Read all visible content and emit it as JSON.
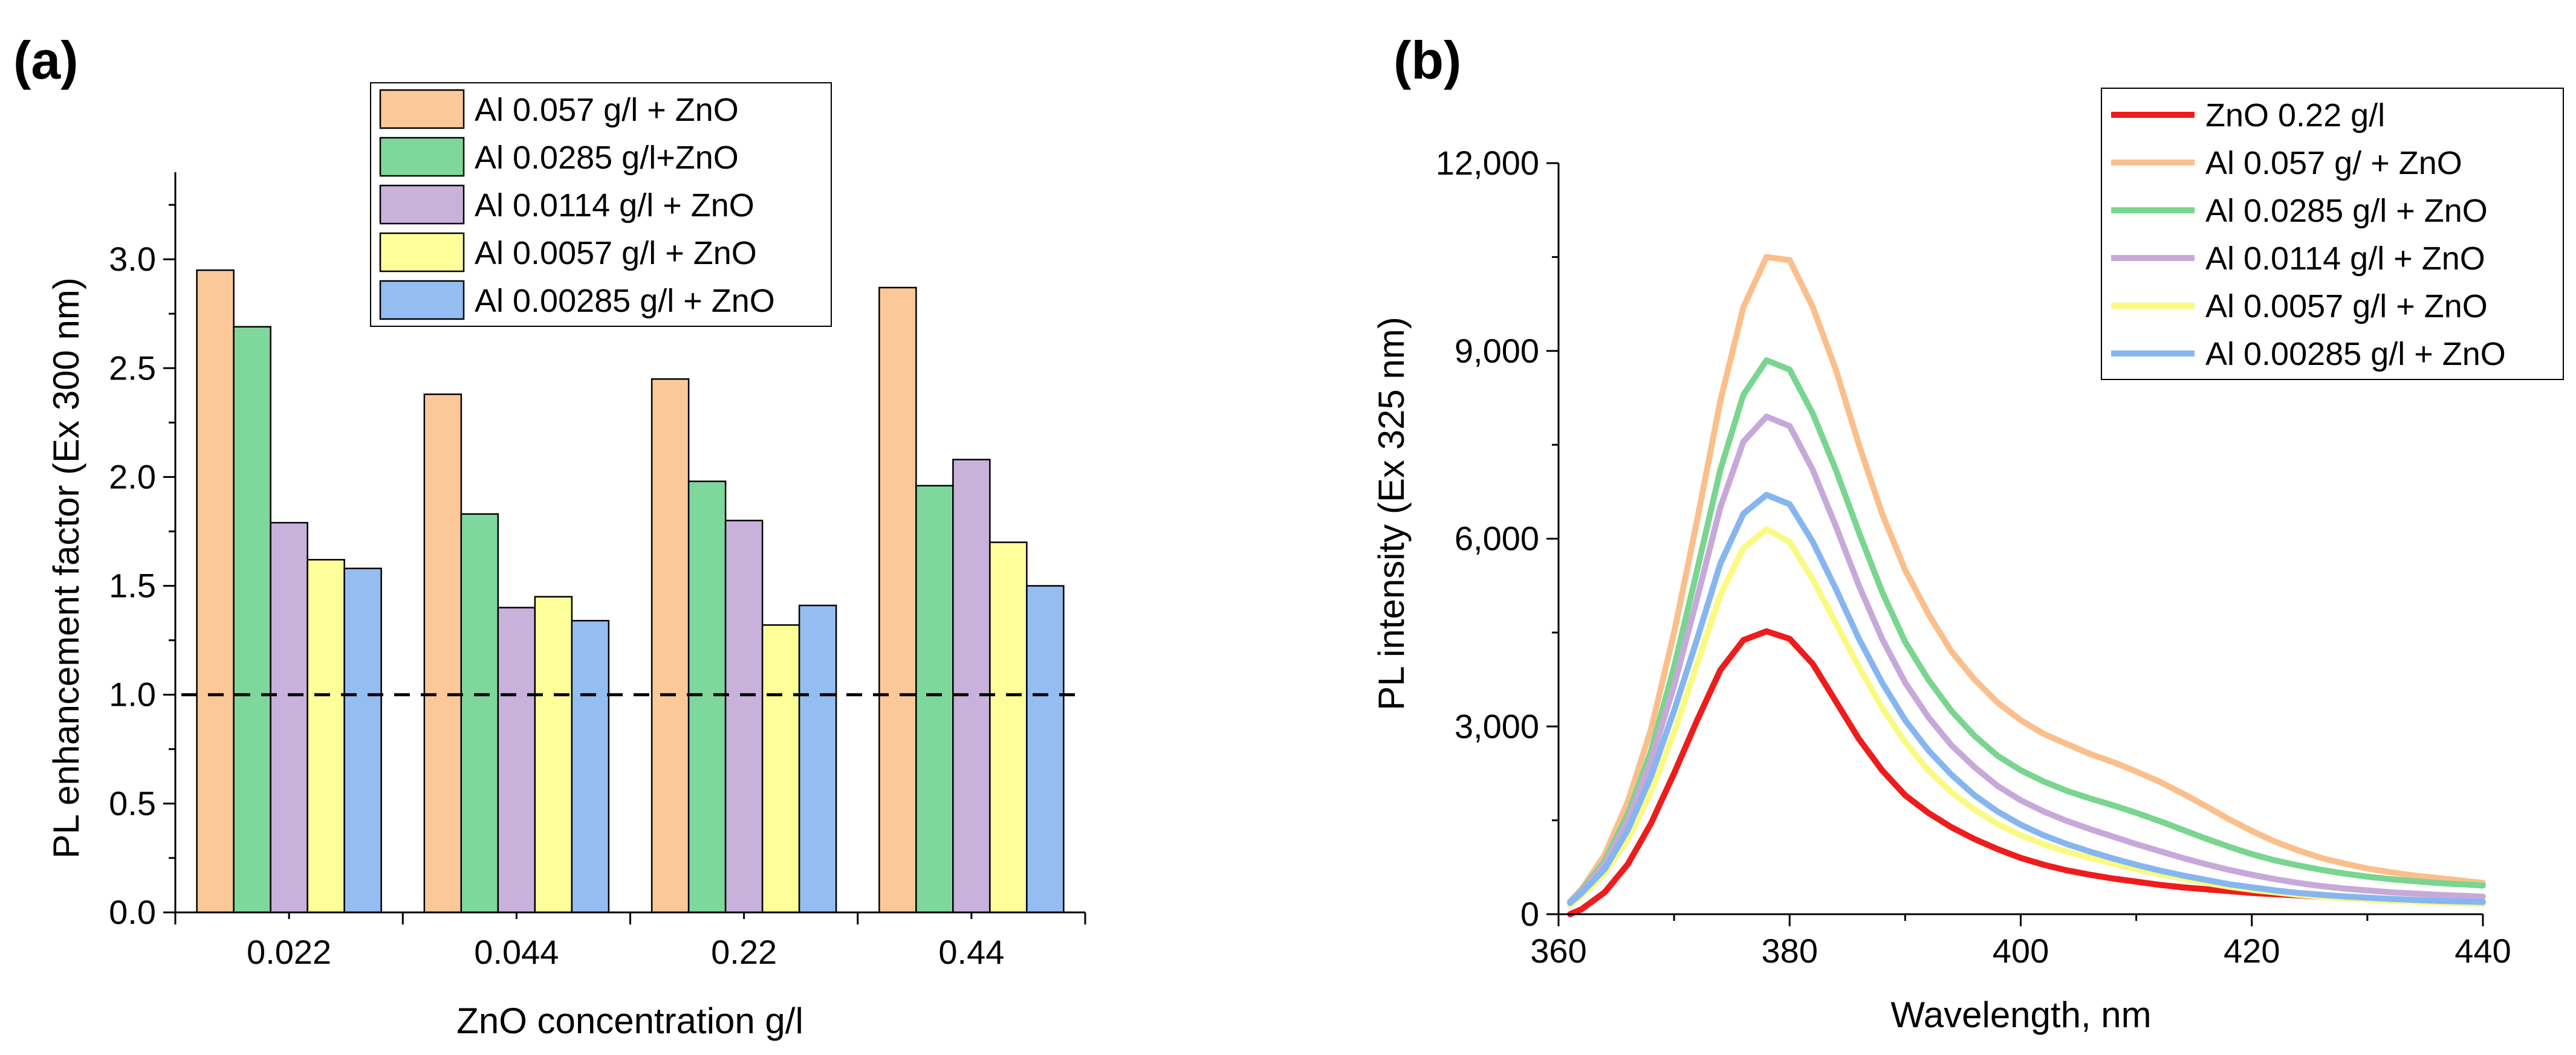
{
  "chart_data": [
    {
      "panel_label": "(a)",
      "type": "bar",
      "xlabel": "ZnO concentration g/l",
      "ylabel": "PL enhancement factor (Ex 300 nm)",
      "ylim": [
        0,
        3.4
      ],
      "yticks": [
        0.0,
        0.5,
        1.0,
        1.5,
        2.0,
        2.5,
        3.0
      ],
      "ytick_labels": [
        "0.0",
        "0.5",
        "1.0",
        "1.5",
        "2.0",
        "2.5",
        "3.0"
      ],
      "categories": [
        "0.022",
        "0.044",
        "0.22",
        "0.44"
      ],
      "reference_line": {
        "y": 1.0,
        "style": "dashed"
      },
      "legend_position": "top-center",
      "series": [
        {
          "name": "Al 0.057 g/l + ZnO",
          "color": "#FDC898",
          "values": [
            2.95,
            2.38,
            2.45,
            2.87
          ]
        },
        {
          "name": "Al 0.0285 g/l+ZnO",
          "color": "#7ED89C",
          "values": [
            2.69,
            1.83,
            1.98,
            1.96
          ]
        },
        {
          "name": "Al 0.0114 g/l + ZnO",
          "color": "#C8B2DC",
          "values": [
            1.79,
            1.4,
            1.8,
            2.08
          ]
        },
        {
          "name": "Al 0.0057 g/l + ZnO",
          "color": "#FFFF99",
          "values": [
            1.62,
            1.45,
            1.32,
            1.7
          ]
        },
        {
          "name": "Al 0.00285 g/l + ZnO",
          "color": "#94BDF2",
          "values": [
            1.58,
            1.34,
            1.41,
            1.5
          ]
        }
      ]
    },
    {
      "panel_label": "(b)",
      "type": "line",
      "xlabel": "Wavelength, nm",
      "ylabel": "PL intensity (Ex  325 nm)",
      "xlim": [
        360,
        440
      ],
      "ylim": [
        0,
        12000
      ],
      "xticks": [
        360,
        380,
        400,
        420,
        440
      ],
      "xtick_labels": [
        "360",
        "380",
        "400",
        "420",
        "440"
      ],
      "yticks": [
        0,
        3000,
        6000,
        9000,
        12000
      ],
      "ytick_labels": [
        "0",
        "3,000",
        "6,000",
        "9,000",
        "12,000"
      ],
      "legend_position": "top-right",
      "x": [
        361,
        362,
        364,
        366,
        368,
        370,
        372,
        374,
        376,
        378,
        380,
        382,
        384,
        386,
        388,
        390,
        392,
        394,
        396,
        398,
        400,
        402,
        404,
        406,
        408,
        410,
        412,
        414,
        416,
        418,
        420,
        422,
        424,
        426,
        428,
        430,
        432,
        434,
        436,
        438,
        440
      ],
      "series": [
        {
          "name": " ZnO 0.22 g/l",
          "color": "#EE1C1C",
          "values": [
            0,
            80,
            350,
            800,
            1450,
            2250,
            3100,
            3900,
            4380,
            4520,
            4400,
            4000,
            3400,
            2800,
            2300,
            1900,
            1620,
            1390,
            1200,
            1040,
            900,
            790,
            700,
            630,
            570,
            520,
            470,
            430,
            400,
            370,
            340,
            320,
            300,
            280,
            260,
            245,
            230,
            215,
            200,
            190,
            180
          ]
        },
        {
          "name": "Al 0.057 g/ + ZnO",
          "color": "#FBBF8C",
          "values": [
            200,
            400,
            950,
            1800,
            2950,
            4500,
            6300,
            8200,
            9700,
            10500,
            10450,
            9700,
            8700,
            7500,
            6400,
            5500,
            4800,
            4200,
            3750,
            3380,
            3100,
            2880,
            2720,
            2560,
            2430,
            2280,
            2120,
            1930,
            1730,
            1520,
            1330,
            1160,
            1020,
            900,
            810,
            730,
            670,
            620,
            580,
            540,
            500
          ]
        },
        {
          "name": "Al 0.0285 g/l + ZnO",
          "color": "#79D58F",
          "values": [
            200,
            380,
            850,
            1600,
            2600,
            3950,
            5500,
            7100,
            8300,
            8850,
            8700,
            8000,
            7100,
            6100,
            5150,
            4350,
            3750,
            3250,
            2850,
            2530,
            2300,
            2120,
            1970,
            1850,
            1740,
            1620,
            1490,
            1350,
            1210,
            1080,
            960,
            860,
            780,
            710,
            650,
            600,
            560,
            530,
            500,
            480,
            460
          ]
        },
        {
          "name": "Al 0.0114 g/l + ZnO",
          "color": "#C7A9D9",
          "values": [
            200,
            360,
            800,
            1500,
            2450,
            3650,
            5050,
            6500,
            7550,
            7950,
            7800,
            7100,
            6200,
            5250,
            4400,
            3700,
            3150,
            2700,
            2350,
            2050,
            1820,
            1640,
            1490,
            1360,
            1240,
            1120,
            1010,
            900,
            800,
            710,
            630,
            560,
            500,
            450,
            410,
            380,
            350,
            330,
            310,
            295,
            280
          ]
        },
        {
          "name": "Al 0.0057 g/l + ZnO",
          "color": "#FAFA82",
          "values": [
            150,
            300,
            650,
            1200,
            1950,
            2900,
            4000,
            5100,
            5850,
            6150,
            5950,
            5350,
            4650,
            3950,
            3300,
            2750,
            2300,
            1950,
            1670,
            1440,
            1260,
            1120,
            1000,
            900,
            810,
            720,
            640,
            570,
            500,
            440,
            390,
            350,
            310,
            280,
            255,
            235,
            215,
            200,
            185,
            175,
            165
          ]
        },
        {
          "name": "Al 0.00285 g/l + ZnO",
          "color": "#86B6F0",
          "values": [
            180,
            340,
            720,
            1350,
            2200,
            3250,
            4400,
            5600,
            6400,
            6700,
            6550,
            5950,
            5200,
            4400,
            3700,
            3100,
            2620,
            2230,
            1900,
            1640,
            1430,
            1260,
            1120,
            1000,
            890,
            790,
            700,
            620,
            550,
            480,
            430,
            380,
            340,
            310,
            285,
            265,
            245,
            230,
            215,
            205,
            195
          ]
        }
      ]
    }
  ]
}
